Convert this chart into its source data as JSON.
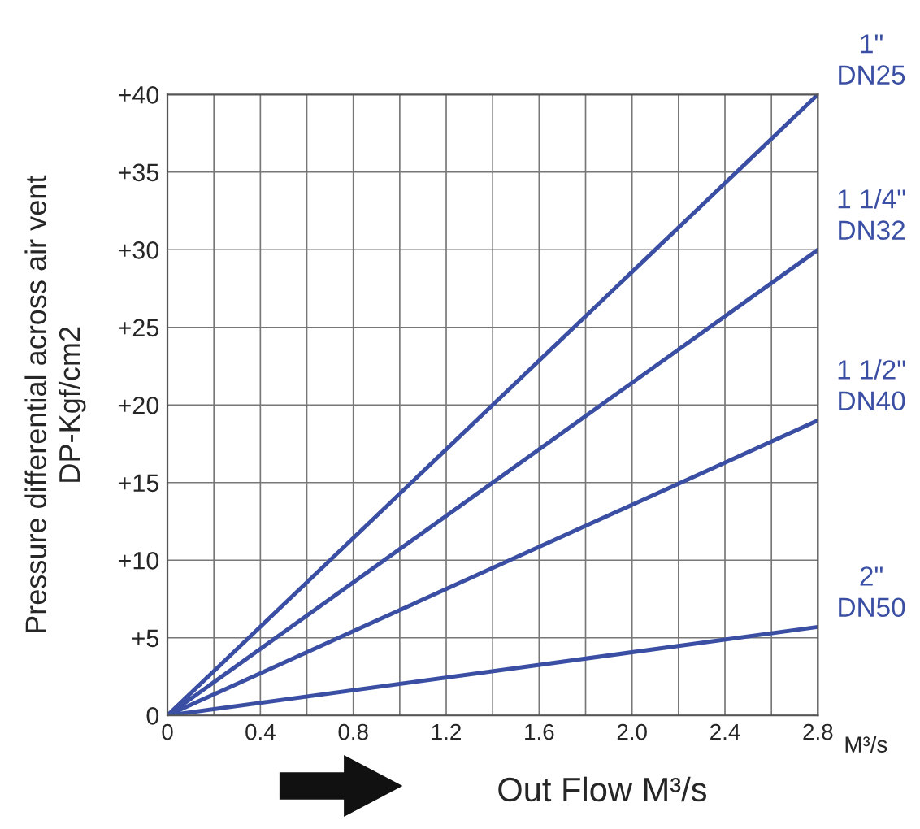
{
  "chart_data": {
    "type": "line",
    "xlabel": "Out Flow M³/s",
    "ylabel": "Pressure differential across air vent\nDP-Kgf/cm2",
    "annotations": [
      "M³/s"
    ],
    "x": [
      0,
      2.8
    ],
    "series": [
      {
        "name": "1\"\nDN25",
        "color": "#3a4fa3",
        "values": [
          0,
          40
        ]
      },
      {
        "name": "1 1/4\"\nDN32",
        "color": "#3a4fa3",
        "values": [
          0,
          30
        ]
      },
      {
        "name": "1 1/2\"\nDN40",
        "color": "#3a4fa3",
        "values": [
          0,
          19
        ]
      },
      {
        "name": "2\"\nDN50",
        "color": "#3a4fa3",
        "values": [
          0,
          5.7
        ]
      }
    ],
    "xlim": [
      0,
      2.8
    ],
    "xticks": [
      0,
      {
        "value": 0.2,
        "label": null
      },
      0.4,
      {
        "value": 0.6,
        "label": null
      },
      0.8,
      {
        "value": 1.0,
        "label": null
      },
      1.2,
      {
        "value": 1.4,
        "label": null
      },
      1.6,
      {
        "value": 1.8,
        "label": null
      },
      {
        "value": 2.0,
        "label": "2.0"
      },
      {
        "value": 2.2,
        "label": null
      },
      2.4,
      {
        "value": 2.6,
        "label": null
      },
      2.8
    ],
    "ylim": [
      0,
      40
    ],
    "yticks": [
      0,
      {
        "value": 5,
        "label": "+5"
      },
      {
        "value": 10,
        "label": "+10"
      },
      {
        "value": 15,
        "label": "+15"
      },
      {
        "value": 20,
        "label": "+20"
      },
      {
        "value": 25,
        "label": "+25"
      },
      {
        "value": 30,
        "label": "+30"
      },
      {
        "value": 35,
        "label": "+35"
      },
      {
        "value": 40,
        "label": "+40"
      }
    ],
    "grid": true,
    "legend": false,
    "marker": "none",
    "line_style": "solid"
  }
}
